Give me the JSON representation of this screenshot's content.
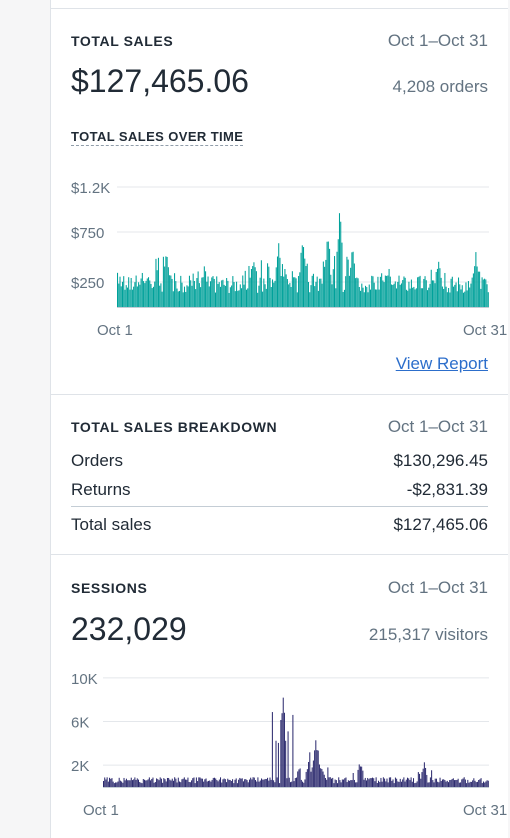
{
  "total_sales": {
    "title": "TOTAL SALES",
    "date_range": "Oct 1–Oct 31",
    "amount": "$127,465.06",
    "orders": "4,208 orders",
    "chart_title": "TOTAL SALES OVER TIME",
    "view_report": "View Report"
  },
  "breakdown": {
    "title": "TOTAL SALES BREAKDOWN",
    "date_range": "Oct 1–Oct 31",
    "rows": [
      {
        "label": "Orders",
        "value": "$130,296.45"
      },
      {
        "label": "Returns",
        "value": "-$2,831.39"
      }
    ],
    "total": {
      "label": "Total sales",
      "value": "$127,465.06"
    }
  },
  "sessions": {
    "title": "SESSIONS",
    "date_range": "Oct 1–Oct 31",
    "count": "232,029",
    "visitors": "215,317 visitors"
  },
  "colors": {
    "sales": "#00a19a",
    "sessions": "#2c2a6e",
    "link": "#2c6ecb"
  },
  "chart_data": [
    {
      "type": "bar",
      "ytick_labels": [
        "$1.2K",
        "$750",
        "$250"
      ],
      "ytick_values": [
        1200,
        750,
        250
      ],
      "xtick_labels": [
        "Oct 1",
        "Oct 31"
      ],
      "ylim": [
        0,
        1300
      ],
      "peaks": [
        {
          "day": 1,
          "value": 350
        },
        {
          "day": 3,
          "value": 420
        },
        {
          "day": 5,
          "value": 680
        },
        {
          "day": 8,
          "value": 480
        },
        {
          "day": 12,
          "value": 630
        },
        {
          "day": 14,
          "value": 720
        },
        {
          "day": 16,
          "value": 800
        },
        {
          "day": 18,
          "value": 820
        },
        {
          "day": 19,
          "value": 1100
        },
        {
          "day": 20,
          "value": 640
        },
        {
          "day": 23,
          "value": 460
        },
        {
          "day": 27,
          "value": 580
        },
        {
          "day": 30,
          "value": 560
        }
      ]
    },
    {
      "type": "bar",
      "ytick_labels": [
        "10K",
        "6K",
        "2K"
      ],
      "ytick_values": [
        10000,
        6000,
        2000
      ],
      "xtick_labels": [
        "Oct 1",
        "Oct 31"
      ],
      "ylim": [
        0,
        11000
      ],
      "peaks": [
        {
          "day": 3,
          "value": 900
        },
        {
          "day": 10,
          "value": 600
        },
        {
          "day": 14,
          "value": 1000
        },
        {
          "day": 15,
          "value": 9300
        },
        {
          "day": 17,
          "value": 2500
        },
        {
          "day": 17.6,
          "value": 5000
        },
        {
          "day": 18,
          "value": 2200
        },
        {
          "day": 21,
          "value": 2600
        },
        {
          "day": 26,
          "value": 2400
        }
      ]
    }
  ]
}
